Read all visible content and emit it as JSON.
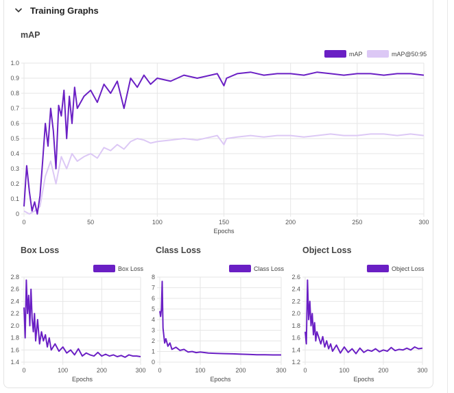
{
  "section": {
    "title": "Training Graphs"
  },
  "colors": {
    "primary": "#6a1fc4",
    "secondary": "#dcc8f5",
    "grid": "#e6e6e6",
    "axis_text": "#555555"
  },
  "charts": {
    "map": {
      "title": "mAP",
      "chart_data": {
        "type": "line",
        "xlabel": "Epochs",
        "xlim": [
          0,
          300
        ],
        "ylim": [
          0,
          1.0
        ],
        "xticks": [
          0,
          50,
          100,
          150,
          200,
          250,
          300
        ],
        "yticks": [
          0,
          0.1,
          0.2,
          0.3,
          0.4,
          0.5,
          0.6,
          0.7,
          0.8,
          0.9,
          1.0
        ],
        "ytick_labels": [
          "0",
          "0.1",
          "0.2",
          "0.3",
          "0.4",
          "0.5",
          "0.6",
          "0.7",
          "0.8",
          "0.9",
          "1.0"
        ],
        "series": [
          {
            "name": "mAP",
            "color": "#6a1fc4",
            "x": [
              0,
              2,
              4,
              6,
              8,
              10,
              12,
              14,
              16,
              18,
              20,
              22,
              24,
              26,
              28,
              30,
              32,
              34,
              36,
              38,
              40,
              45,
              50,
              55,
              60,
              65,
              70,
              75,
              80,
              85,
              90,
              95,
              100,
              110,
              120,
              130,
              140,
              145,
              150,
              152,
              160,
              170,
              180,
              190,
              200,
              210,
              220,
              230,
              240,
              250,
              260,
              270,
              280,
              290,
              300
            ],
            "y": [
              0.05,
              0.32,
              0.15,
              0.02,
              0.08,
              0.0,
              0.12,
              0.35,
              0.6,
              0.45,
              0.7,
              0.55,
              0.3,
              0.72,
              0.65,
              0.82,
              0.5,
              0.78,
              0.6,
              0.84,
              0.7,
              0.78,
              0.82,
              0.74,
              0.86,
              0.8,
              0.88,
              0.7,
              0.9,
              0.84,
              0.92,
              0.86,
              0.9,
              0.88,
              0.92,
              0.9,
              0.92,
              0.93,
              0.85,
              0.9,
              0.93,
              0.94,
              0.92,
              0.93,
              0.93,
              0.92,
              0.94,
              0.93,
              0.92,
              0.93,
              0.93,
              0.92,
              0.93,
              0.93,
              0.92
            ]
          },
          {
            "name": "mAP@50:95",
            "color": "#dcc8f5",
            "x": [
              0,
              4,
              8,
              12,
              16,
              20,
              24,
              28,
              32,
              36,
              40,
              45,
              50,
              55,
              60,
              65,
              70,
              75,
              80,
              85,
              90,
              95,
              100,
              110,
              120,
              130,
              140,
              145,
              150,
              152,
              160,
              170,
              180,
              190,
              200,
              210,
              220,
              230,
              240,
              250,
              260,
              270,
              280,
              290,
              300
            ],
            "y": [
              0.02,
              0.0,
              0.02,
              0.05,
              0.25,
              0.35,
              0.2,
              0.38,
              0.3,
              0.4,
              0.35,
              0.38,
              0.4,
              0.37,
              0.44,
              0.42,
              0.46,
              0.43,
              0.48,
              0.5,
              0.49,
              0.47,
              0.48,
              0.49,
              0.5,
              0.49,
              0.51,
              0.52,
              0.46,
              0.5,
              0.51,
              0.52,
              0.51,
              0.52,
              0.52,
              0.51,
              0.52,
              0.53,
              0.52,
              0.52,
              0.53,
              0.53,
              0.52,
              0.53,
              0.52
            ]
          }
        ]
      }
    },
    "box": {
      "title": "Box Loss",
      "chart_data": {
        "type": "line",
        "xlabel": "Epochs",
        "xlim": [
          0,
          300
        ],
        "ylim": [
          1.4,
          2.8
        ],
        "xticks": [
          0,
          100,
          200,
          300
        ],
        "yticks": [
          1.4,
          1.6,
          1.8,
          2.0,
          2.2,
          2.4,
          2.6,
          2.8
        ],
        "ytick_labels": [
          "1.4",
          "1.6",
          "1.8",
          "2.0",
          "2.2",
          "2.4",
          "2.6",
          "2.8"
        ],
        "series": [
          {
            "name": "Box Loss",
            "color": "#6a1fc4",
            "x": [
              0,
              3,
              6,
              9,
              12,
              15,
              18,
              21,
              24,
              27,
              30,
              35,
              40,
              45,
              50,
              55,
              60,
              65,
              70,
              80,
              90,
              100,
              110,
              120,
              130,
              140,
              150,
              160,
              170,
              180,
              190,
              200,
              210,
              220,
              230,
              240,
              250,
              260,
              270,
              280,
              290,
              300
            ],
            "y": [
              2.3,
              1.8,
              2.75,
              2.2,
              2.5,
              2.0,
              2.6,
              2.1,
              1.9,
              2.2,
              1.75,
              2.1,
              1.7,
              1.9,
              1.75,
              1.85,
              1.65,
              1.8,
              1.6,
              1.7,
              1.58,
              1.65,
              1.55,
              1.6,
              1.52,
              1.62,
              1.5,
              1.55,
              1.52,
              1.5,
              1.56,
              1.5,
              1.53,
              1.5,
              1.52,
              1.49,
              1.51,
              1.48,
              1.52,
              1.5,
              1.5,
              1.49
            ]
          }
        ]
      }
    },
    "class": {
      "title": "Class Loss",
      "chart_data": {
        "type": "line",
        "xlabel": "Epochs",
        "xlim": [
          0,
          300
        ],
        "ylim": [
          0,
          8
        ],
        "xticks": [
          0,
          100,
          200,
          300
        ],
        "yticks": [
          0,
          1,
          2,
          3,
          4,
          5,
          6,
          7,
          8
        ],
        "ytick_labels": [
          "0",
          "1",
          "2",
          "3",
          "4",
          "5",
          "6",
          "7",
          "8"
        ],
        "series": [
          {
            "name": "Class Loss",
            "color": "#6a1fc4",
            "x": [
              0,
              2,
              4,
              6,
              8,
              10,
              12,
              15,
              20,
              25,
              30,
              40,
              50,
              60,
              70,
              80,
              90,
              100,
              120,
              140,
              160,
              180,
              200,
              220,
              240,
              260,
              280,
              300
            ],
            "y": [
              4.8,
              4.3,
              5.0,
              7.6,
              3.2,
              2.5,
              1.8,
              2.2,
              1.5,
              1.8,
              1.2,
              1.4,
              1.1,
              1.2,
              0.95,
              1.0,
              0.9,
              0.95,
              0.85,
              0.82,
              0.8,
              0.78,
              0.75,
              0.72,
              0.7,
              0.7,
              0.68,
              0.68
            ]
          }
        ]
      }
    },
    "object": {
      "title": "Object Loss",
      "chart_data": {
        "type": "line",
        "xlabel": "Epochs",
        "xlim": [
          0,
          300
        ],
        "ylim": [
          1.2,
          2.6
        ],
        "xticks": [
          0,
          100,
          200,
          300
        ],
        "yticks": [
          1.2,
          1.4,
          1.6,
          1.8,
          2.0,
          2.2,
          2.4,
          2.6
        ],
        "ytick_labels": [
          "1.2",
          "1.4",
          "1.6",
          "1.8",
          "2.0",
          "2.2",
          "2.4",
          "2.6"
        ],
        "series": [
          {
            "name": "Object Loss",
            "color": "#6a1fc4",
            "x": [
              0,
              3,
              6,
              9,
              12,
              15,
              18,
              21,
              24,
              27,
              30,
              35,
              40,
              45,
              50,
              55,
              60,
              65,
              70,
              80,
              90,
              100,
              110,
              120,
              130,
              140,
              150,
              160,
              170,
              180,
              190,
              200,
              210,
              220,
              230,
              240,
              250,
              260,
              270,
              280,
              290,
              300
            ],
            "y": [
              1.7,
              1.5,
              2.55,
              1.9,
              2.2,
              1.8,
              2.0,
              1.65,
              1.85,
              1.55,
              1.7,
              1.6,
              1.5,
              1.62,
              1.45,
              1.55,
              1.42,
              1.5,
              1.38,
              1.48,
              1.35,
              1.45,
              1.36,
              1.42,
              1.34,
              1.43,
              1.36,
              1.4,
              1.38,
              1.42,
              1.37,
              1.4,
              1.38,
              1.44,
              1.39,
              1.41,
              1.4,
              1.43,
              1.4,
              1.45,
              1.42,
              1.43
            ]
          }
        ]
      }
    }
  }
}
